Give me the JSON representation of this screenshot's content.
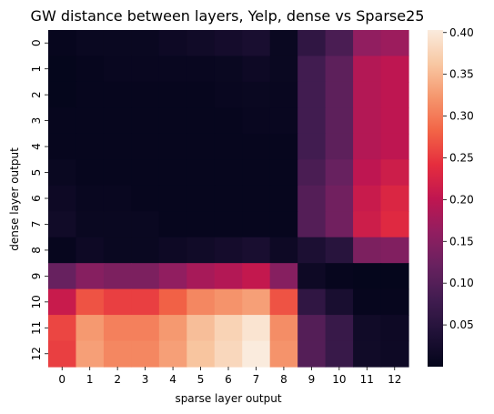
{
  "chart_data": {
    "type": "heatmap",
    "title": "GW distance between layers, Yelp, dense vs Sparse25",
    "xlabel": "sparse layer output",
    "ylabel": "dense layer output",
    "x_categories": [
      "0",
      "1",
      "2",
      "3",
      "4",
      "5",
      "6",
      "7",
      "8",
      "9",
      "10",
      "11",
      "12"
    ],
    "y_categories": [
      "0",
      "1",
      "2",
      "3",
      "4",
      "5",
      "6",
      "7",
      "8",
      "9",
      "10",
      "11",
      "12"
    ],
    "colorbar": {
      "min": 0.0,
      "max": 0.403,
      "ticks": [
        0.05,
        0.1,
        0.15,
        0.2,
        0.25,
        0.3,
        0.35,
        0.4
      ],
      "tick_labels": [
        "0.05",
        "0.10",
        "0.15",
        "0.20",
        "0.25",
        "0.30",
        "0.35",
        "0.40"
      ],
      "colormap": "rocket"
    },
    "values": [
      [
        0.005,
        0.01,
        0.01,
        0.01,
        0.015,
        0.02,
        0.025,
        0.03,
        0.01,
        0.06,
        0.09,
        0.16,
        0.17
      ],
      [
        0.003,
        0.005,
        0.008,
        0.008,
        0.008,
        0.008,
        0.01,
        0.015,
        0.01,
        0.08,
        0.11,
        0.19,
        0.2
      ],
      [
        0.003,
        0.005,
        0.005,
        0.005,
        0.005,
        0.005,
        0.008,
        0.01,
        0.008,
        0.08,
        0.11,
        0.19,
        0.2
      ],
      [
        0.005,
        0.005,
        0.005,
        0.005,
        0.005,
        0.005,
        0.005,
        0.008,
        0.008,
        0.08,
        0.11,
        0.19,
        0.2
      ],
      [
        0.005,
        0.005,
        0.005,
        0.005,
        0.005,
        0.005,
        0.005,
        0.005,
        0.005,
        0.08,
        0.11,
        0.19,
        0.2
      ],
      [
        0.01,
        0.005,
        0.005,
        0.005,
        0.005,
        0.005,
        0.005,
        0.005,
        0.005,
        0.09,
        0.12,
        0.2,
        0.215
      ],
      [
        0.015,
        0.008,
        0.008,
        0.005,
        0.005,
        0.005,
        0.005,
        0.005,
        0.005,
        0.1,
        0.13,
        0.21,
        0.23
      ],
      [
        0.02,
        0.01,
        0.01,
        0.01,
        0.005,
        0.005,
        0.005,
        0.005,
        0.005,
        0.1,
        0.13,
        0.215,
        0.235
      ],
      [
        0.005,
        0.015,
        0.01,
        0.01,
        0.015,
        0.02,
        0.025,
        0.03,
        0.015,
        0.035,
        0.05,
        0.14,
        0.145
      ],
      [
        0.12,
        0.15,
        0.14,
        0.14,
        0.16,
        0.18,
        0.19,
        0.205,
        0.15,
        0.015,
        0.005,
        0.003,
        0.003
      ],
      [
        0.21,
        0.27,
        0.255,
        0.255,
        0.28,
        0.31,
        0.32,
        0.33,
        0.27,
        0.06,
        0.03,
        0.005,
        0.005
      ],
      [
        0.26,
        0.325,
        0.305,
        0.305,
        0.325,
        0.355,
        0.375,
        0.395,
        0.315,
        0.1,
        0.07,
        0.02,
        0.015
      ],
      [
        0.255,
        0.33,
        0.31,
        0.31,
        0.33,
        0.36,
        0.38,
        0.403,
        0.32,
        0.1,
        0.07,
        0.02,
        0.015
      ]
    ]
  }
}
